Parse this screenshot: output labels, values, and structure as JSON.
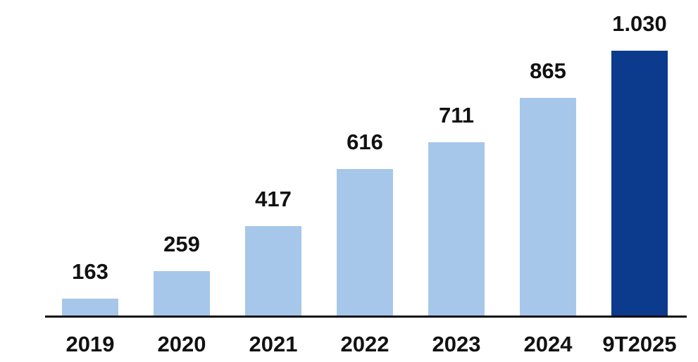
{
  "chart_data": {
    "type": "bar",
    "title": "",
    "xlabel": "",
    "ylabel": "",
    "categories": [
      "2019",
      "2020",
      "2021",
      "2022",
      "2023",
      "2024",
      "9T2025"
    ],
    "values": [
      163,
      259,
      417,
      616,
      711,
      865,
      1030
    ],
    "value_labels": [
      "163",
      "259",
      "417",
      "616",
      "711",
      "865",
      "1.030"
    ],
    "highlight_index": 6,
    "ylim": [
      105,
      1030
    ],
    "grid": false,
    "legend": "none",
    "colors": {
      "bar_default": "#a6c7e9",
      "bar_highlight": "#0c3a8d",
      "axis": "#0d0d0d",
      "label_text": "#111111"
    }
  }
}
